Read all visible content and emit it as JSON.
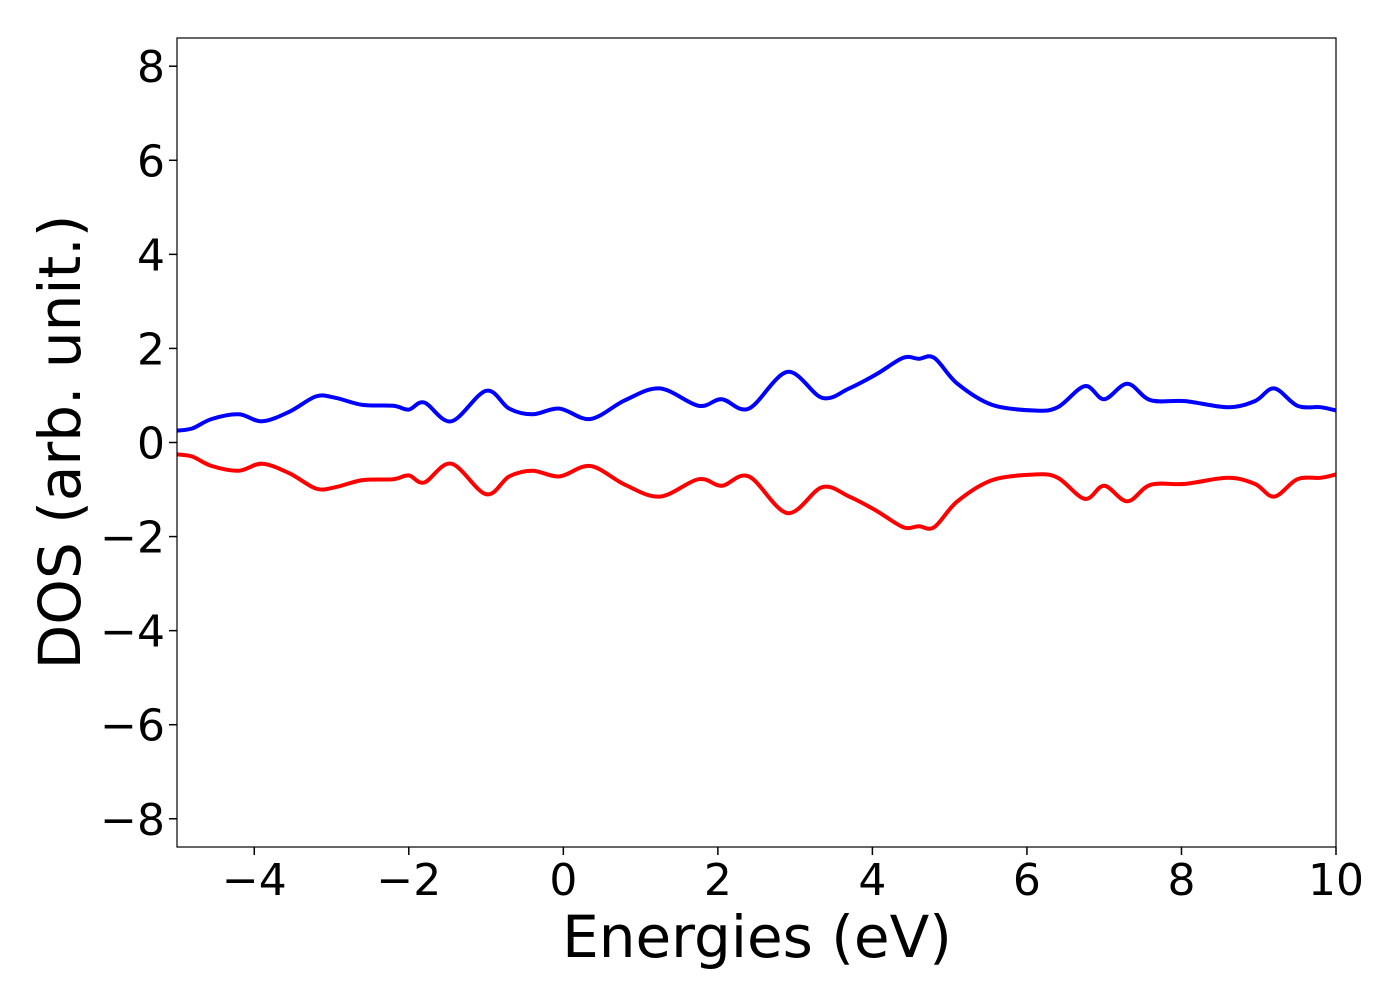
{
  "chart_data": {
    "type": "line",
    "title": "",
    "xlabel": "Energies (eV)",
    "ylabel": "DOS (arb. unit.)",
    "xlim": [
      -5,
      10
    ],
    "ylim": [
      -8.6,
      8.6
    ],
    "xticks": [
      -4,
      -2,
      0,
      2,
      4,
      6,
      8,
      10
    ],
    "yticks": [
      -8,
      -6,
      -4,
      -2,
      0,
      2,
      4,
      6,
      8
    ],
    "grid": false,
    "legend": "none",
    "series": [
      {
        "color": "#0000ff",
        "x": [
          -5.0,
          -4.8,
          -4.55,
          -4.2,
          -3.9,
          -3.55,
          -3.2,
          -2.95,
          -2.6,
          -2.2,
          -2.0,
          -1.8,
          -1.45,
          -1.0,
          -0.7,
          -0.4,
          -0.05,
          0.35,
          0.8,
          1.25,
          1.75,
          2.05,
          2.4,
          2.9,
          3.35,
          3.7,
          4.05,
          4.4,
          4.6,
          4.8,
          5.1,
          5.55,
          6.1,
          6.4,
          6.75,
          7.0,
          7.3,
          7.6,
          8.05,
          8.6,
          8.95,
          9.2,
          9.5,
          9.8,
          10.0
        ],
        "values": [
          0.25,
          0.3,
          0.5,
          0.6,
          0.45,
          0.65,
          0.98,
          0.95,
          0.8,
          0.78,
          0.7,
          0.85,
          0.45,
          1.1,
          0.72,
          0.6,
          0.72,
          0.5,
          0.9,
          1.15,
          0.78,
          0.92,
          0.72,
          1.5,
          0.95,
          1.15,
          1.45,
          1.8,
          1.78,
          1.8,
          1.25,
          0.8,
          0.68,
          0.75,
          1.2,
          0.92,
          1.25,
          0.9,
          0.88,
          0.75,
          0.88,
          1.15,
          0.78,
          0.75,
          0.68
        ]
      },
      {
        "color": "#ff0000",
        "x": [
          -5.0,
          -4.8,
          -4.55,
          -4.2,
          -3.9,
          -3.55,
          -3.2,
          -2.95,
          -2.6,
          -2.2,
          -2.0,
          -1.8,
          -1.45,
          -1.0,
          -0.7,
          -0.4,
          -0.05,
          0.35,
          0.8,
          1.25,
          1.75,
          2.05,
          2.4,
          2.9,
          3.35,
          3.7,
          4.05,
          4.4,
          4.6,
          4.8,
          5.1,
          5.55,
          6.1,
          6.4,
          6.75,
          7.0,
          7.3,
          7.6,
          8.05,
          8.6,
          8.95,
          9.2,
          9.5,
          9.8,
          10.0
        ],
        "values": [
          -0.25,
          -0.3,
          -0.5,
          -0.6,
          -0.45,
          -0.65,
          -0.98,
          -0.95,
          -0.8,
          -0.78,
          -0.7,
          -0.85,
          -0.45,
          -1.1,
          -0.72,
          -0.6,
          -0.72,
          -0.5,
          -0.9,
          -1.15,
          -0.78,
          -0.92,
          -0.72,
          -1.5,
          -0.95,
          -1.15,
          -1.45,
          -1.8,
          -1.78,
          -1.8,
          -1.25,
          -0.8,
          -0.68,
          -0.75,
          -1.2,
          -0.92,
          -1.25,
          -0.9,
          -0.88,
          -0.75,
          -0.88,
          -1.15,
          -0.78,
          -0.75,
          -0.68
        ]
      }
    ]
  }
}
